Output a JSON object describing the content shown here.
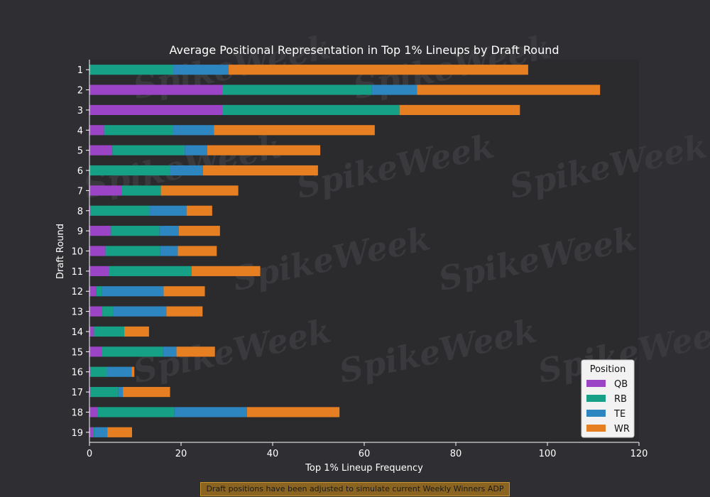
{
  "colors": {
    "background": "#2f2f33",
    "plot_background": "#2b2b2e",
    "QB": "#9b45c6",
    "RB": "#16a085",
    "TE": "#2e86c1",
    "WR": "#e67e22",
    "legend_background": "#f2f2f2",
    "footnote_background": "#8a6420"
  },
  "watermark": "SpikeWeek",
  "footnote": "Draft positions have been adjusted to simulate current Weekly Winners ADP",
  "chart_data": {
    "type": "bar",
    "orientation": "horizontal",
    "stacked": true,
    "title": "Average Positional Representation in Top 1% Lineups by Draft Round",
    "xlabel": "Top 1% Lineup Frequency",
    "ylabel": "Draft Round",
    "xlim": [
      0,
      120
    ],
    "xticks": [
      0,
      20,
      40,
      60,
      80,
      100,
      120
    ],
    "grid": false,
    "legend_title": "Position",
    "legend_position": "lower-right",
    "categories": [
      "1",
      "2",
      "3",
      "4",
      "5",
      "6",
      "7",
      "8",
      "9",
      "10",
      "11",
      "12",
      "13",
      "14",
      "15",
      "16",
      "17",
      "18",
      "19"
    ],
    "series": [
      {
        "name": "QB",
        "color_key": "QB",
        "values": [
          0,
          29,
          29,
          3.2,
          5,
          0,
          7,
          0.3,
          4.7,
          3.5,
          4.2,
          1.5,
          2.8,
          1,
          2.7,
          0.3,
          0.3,
          1.8,
          0.8
        ]
      },
      {
        "name": "RB",
        "color_key": "RB",
        "values": [
          18.3,
          32.6,
          38.7,
          15.1,
          15.8,
          17.6,
          8.6,
          12.8,
          10.6,
          11.9,
          18.1,
          1.2,
          2.4,
          6.6,
          13.4,
          3.5,
          6,
          16.7,
          0.3
        ]
      },
      {
        "name": "TE",
        "color_key": "TE",
        "values": [
          12.1,
          9.9,
          0,
          8.9,
          4.9,
          7.2,
          0,
          8.1,
          4.2,
          3.9,
          0,
          13.5,
          11.6,
          0,
          2.9,
          5.4,
          1,
          15.9,
          2.8
        ]
      },
      {
        "name": "WR",
        "color_key": "WR",
        "values": [
          65.4,
          40,
          26.3,
          35.1,
          24.7,
          25.1,
          16.9,
          5.6,
          9,
          8.5,
          15,
          9,
          7.9,
          5.4,
          8.4,
          0.6,
          10.3,
          20.2,
          5.4
        ]
      }
    ]
  }
}
